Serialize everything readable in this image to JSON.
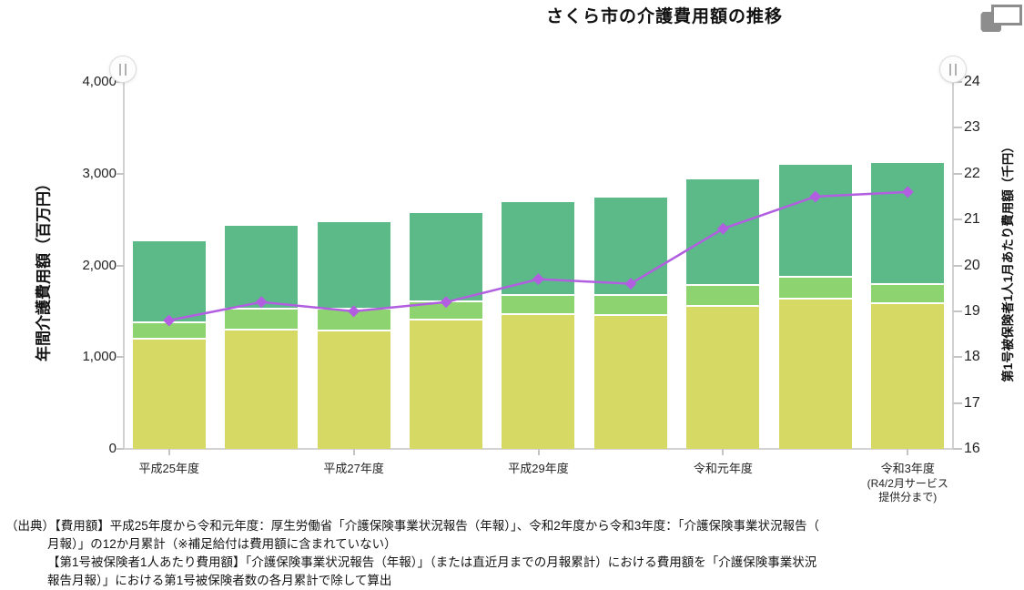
{
  "title": "さくら市の介護費用額の推移",
  "chart_data": {
    "type": "bar",
    "subtype": "stacked-bar-with-line-overlay",
    "title": "さくら市の介護費用額の推移",
    "n_bars": 9,
    "categories": [
      "平成25年度",
      "",
      "平成27年度",
      "",
      "平成29年度",
      "",
      "令和元年度",
      "",
      "令和3年度"
    ],
    "x_tick_labels": [
      "平成25年度",
      "平成27年度",
      "平成29年度",
      "令和元年度",
      "令和3年度"
    ],
    "last_category_sublabel": "(R4/2月サービス\n提供分まで)",
    "bar_unit": "百万円",
    "bar_series": [
      {
        "name": "bottom-segment",
        "color": "#d7d965",
        "values": [
          1190,
          1290,
          1280,
          1400,
          1460,
          1450,
          1550,
          1630,
          1580
        ]
      },
      {
        "name": "middle-segment",
        "color": "#8dd470",
        "values": [
          175,
          225,
          235,
          195,
          205,
          215,
          230,
          240,
          210
        ]
      },
      {
        "name": "top-segment",
        "color": "#5cba89",
        "values": [
          895,
          915,
          960,
          975,
          1025,
          1075,
          1160,
          1225,
          1330
        ]
      }
    ],
    "bar_totals": [
      2260,
      2430,
      2475,
      2570,
      2690,
      2740,
      2940,
      3095,
      3120
    ],
    "line_series": {
      "name": "第1号被保険者1人1月あたり費用額",
      "unit": "千円",
      "color": "#b15fe0",
      "marker": "diamond",
      "values": [
        18.8,
        19.2,
        19.0,
        19.2,
        19.7,
        19.6,
        20.8,
        21.5,
        21.6
      ]
    },
    "y_left": {
      "label": "年間介護費用額（百万円）",
      "min": 0,
      "max": 4000,
      "ticks": [
        "0",
        "1,000",
        "2,000",
        "3,000",
        "4,000"
      ]
    },
    "y_right": {
      "label": "第1号被保険者1人1月あたり費用額（千円）",
      "min": 16,
      "max": 24,
      "ticks": [
        "16",
        "17",
        "18",
        "19",
        "20",
        "21",
        "22",
        "23",
        "24"
      ]
    },
    "grid": false,
    "legend": "none"
  },
  "controls": {
    "left_handle": "range-slider-handle",
    "right_handle": "range-slider-handle"
  },
  "source_note": {
    "lines": [
      "（出典）【費用額】平成25年度から令和元年度：厚生労働省「介護保険事業状況報告（年報）」、令和2年度から令和3年度：「介護保険事業状況報告（",
      "月報）」の12か月累計（※補足給付は費用額に含まれていない）",
      "【第1号被保険者1人あたり費用額】「介護保険事業状況報告（年報）」（または直近月までの月報累計）における費用額を「介護保険事業状況",
      "報告月報）」における第1号被保険者数の各月累計で除して算出"
    ]
  }
}
